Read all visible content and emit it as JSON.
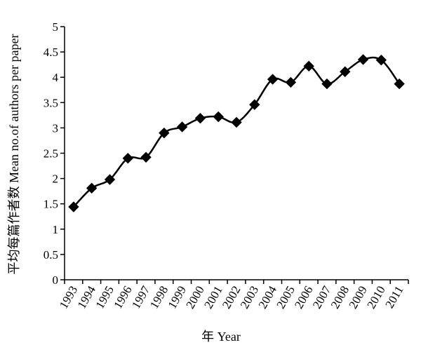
{
  "chart_data": {
    "type": "line",
    "title": "",
    "xlabel": "年 Year",
    "ylabel": "平均每篇作者数 Mean no.of authors per paper",
    "x": [
      "1993",
      "1994",
      "1995",
      "1996",
      "1997",
      "1998",
      "1999",
      "2000",
      "2001",
      "2002",
      "2003",
      "2004",
      "2005",
      "2006",
      "2007",
      "2008",
      "2009",
      "2010",
      "2011"
    ],
    "y_ticks": [
      "0",
      "0.5",
      "1",
      "1.5",
      "2",
      "2.5",
      "3",
      "3.5",
      "4",
      "4.5",
      "5"
    ],
    "ylim": [
      0,
      5
    ],
    "grid": false,
    "series": [
      {
        "marker": "diamond",
        "color": "#000000",
        "values": [
          1.44,
          1.81,
          1.98,
          2.4,
          2.42,
          2.9,
          3.02,
          3.19,
          3.22,
          3.11,
          3.46,
          3.96,
          3.9,
          4.22,
          3.87,
          4.11,
          4.35,
          4.34,
          3.87
        ]
      }
    ]
  }
}
